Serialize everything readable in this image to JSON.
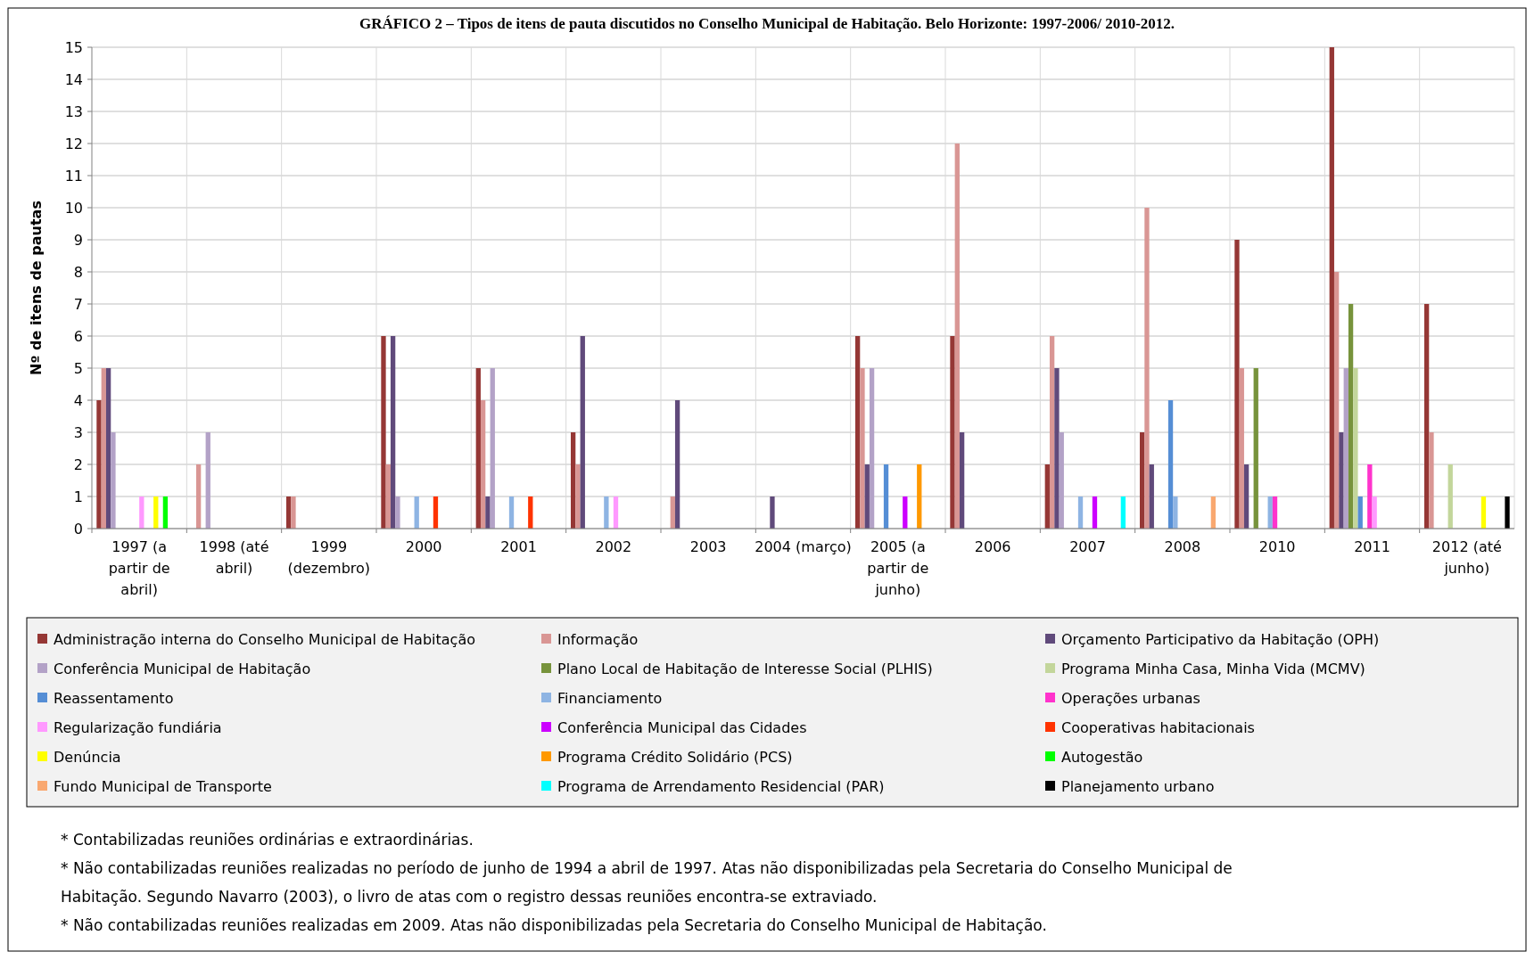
{
  "chart_data": {
    "type": "bar",
    "title": "GRÁFICO 2 – Tipos de itens de pauta discutidos no Conselho Municipal de Habitação. Belo Horizonte: 1997-2006/ 2010-2012.",
    "ylabel": "Nº de itens de pautas",
    "categories": [
      "1997 (a partir de abril)",
      "1998 (até abril)",
      "1999 (dezembro)",
      "2000",
      "2001",
      "2002",
      "2003",
      "2004 (março)",
      "2005 (a partir de junho)",
      "2006",
      "2007",
      "2008",
      "2010",
      "2011",
      "2012 (até junho)"
    ],
    "series": [
      {
        "name": "Administração interna do Conselho Municipal de Habitação",
        "color": "#953735",
        "values": [
          4,
          0,
          1,
          6,
          5,
          3,
          0,
          0,
          6,
          6,
          2,
          3,
          9,
          15,
          7
        ]
      },
      {
        "name": "Informação",
        "color": "#d99694",
        "values": [
          5,
          2,
          1,
          2,
          4,
          2,
          1,
          0,
          5,
          12,
          6,
          10,
          5,
          8,
          3
        ]
      },
      {
        "name": "Orçamento Participativo da Habitação (OPH)",
        "color": "#604a7b",
        "values": [
          5,
          0,
          0,
          6,
          1,
          6,
          4,
          1,
          2,
          3,
          5,
          2,
          2,
          3,
          0
        ]
      },
      {
        "name": "Conferência Municipal de Habitação",
        "color": "#b3a2c7",
        "values": [
          3,
          3,
          0,
          1,
          5,
          0,
          0,
          0,
          5,
          0,
          3,
          0,
          0,
          5,
          0
        ]
      },
      {
        "name": "Plano Local de Habitação de Interesse Social (PLHIS)",
        "color": "#77933c",
        "values": [
          0,
          0,
          0,
          0,
          0,
          0,
          0,
          0,
          0,
          0,
          0,
          0,
          5,
          7,
          0
        ]
      },
      {
        "name": "Programa Minha Casa, Minha Vida (MCMV)",
        "color": "#c3d69b",
        "values": [
          0,
          0,
          0,
          0,
          0,
          0,
          0,
          0,
          0,
          0,
          0,
          0,
          0,
          5,
          2
        ]
      },
      {
        "name": "Reassentamento",
        "color": "#558ed5",
        "values": [
          0,
          0,
          0,
          0,
          0,
          0,
          0,
          0,
          2,
          0,
          0,
          4,
          0,
          1,
          0
        ]
      },
      {
        "name": "Financiamento",
        "color": "#8eb4e3",
        "values": [
          0,
          0,
          0,
          1,
          1,
          1,
          0,
          0,
          0,
          0,
          1,
          1,
          1,
          0,
          0
        ]
      },
      {
        "name": "Operações urbanas",
        "color": "#ff33cc",
        "values": [
          0,
          0,
          0,
          0,
          0,
          0,
          0,
          0,
          0,
          0,
          0,
          0,
          1,
          2,
          0
        ]
      },
      {
        "name": "Regularização fundiária",
        "color": "#ff99ff",
        "values": [
          1,
          0,
          0,
          0,
          0,
          1,
          0,
          0,
          0,
          0,
          0,
          0,
          0,
          1,
          0
        ]
      },
      {
        "name": "Conferência Municipal das Cidades",
        "color": "#cc00ff",
        "values": [
          0,
          0,
          0,
          0,
          0,
          0,
          0,
          0,
          1,
          0,
          1,
          0,
          0,
          0,
          0
        ]
      },
      {
        "name": "Cooperativas habitacionais",
        "color": "#ff3300",
        "values": [
          0,
          0,
          0,
          1,
          1,
          0,
          0,
          0,
          0,
          0,
          0,
          0,
          0,
          0,
          0
        ]
      },
      {
        "name": "Denúncia",
        "color": "#ffff00",
        "values": [
          1,
          0,
          0,
          0,
          0,
          0,
          0,
          0,
          0,
          0,
          0,
          0,
          0,
          0,
          1
        ]
      },
      {
        "name": "Programa Crédito Solidário (PCS)",
        "color": "#ff9900",
        "values": [
          0,
          0,
          0,
          0,
          0,
          0,
          0,
          0,
          2,
          0,
          0,
          0,
          0,
          0,
          0
        ]
      },
      {
        "name": "Autogestão",
        "color": "#00ff00",
        "values": [
          1,
          0,
          0,
          0,
          0,
          0,
          0,
          0,
          0,
          0,
          0,
          0,
          0,
          0,
          0
        ]
      },
      {
        "name": "Fundo Municipal de Transporte",
        "color": "#f9a870",
        "values": [
          0,
          0,
          0,
          0,
          0,
          0,
          0,
          0,
          0,
          0,
          0,
          1,
          0,
          0,
          0
        ]
      },
      {
        "name": "Programa de Arrendamento Residencial (PAR)",
        "color": "#00ffff",
        "values": [
          0,
          0,
          0,
          0,
          0,
          0,
          0,
          0,
          0,
          0,
          1,
          0,
          0,
          0,
          0
        ]
      },
      {
        "name": "Planejamento urbano",
        "color": "#000000",
        "values": [
          0,
          0,
          0,
          0,
          0,
          0,
          0,
          0,
          0,
          0,
          0,
          0,
          0,
          0,
          1
        ]
      }
    ],
    "ylim": [
      0,
      15
    ],
    "yticks": [
      0,
      1,
      2,
      3,
      4,
      5,
      6,
      7,
      8,
      9,
      10,
      11,
      12,
      13,
      14,
      15
    ],
    "grid": true,
    "legend": "bottom",
    "annotations": [
      "* Contabilizadas reuniões ordinárias e extraordinárias.",
      "* Não contabilizadas reuniões realizadas no período de junho de 1994 a abril de 1997. Atas não disponibilizadas pela Secretaria do Conselho Municipal de Habitação. Segundo Navarro (2003), o livro de atas com o registro dessas reuniões encontra-se extraviado.",
      "* Não contabilizadas reuniões realizadas em 2009. Atas não disponibilizadas pela Secretaria do Conselho Municipal de Habitação."
    ]
  }
}
